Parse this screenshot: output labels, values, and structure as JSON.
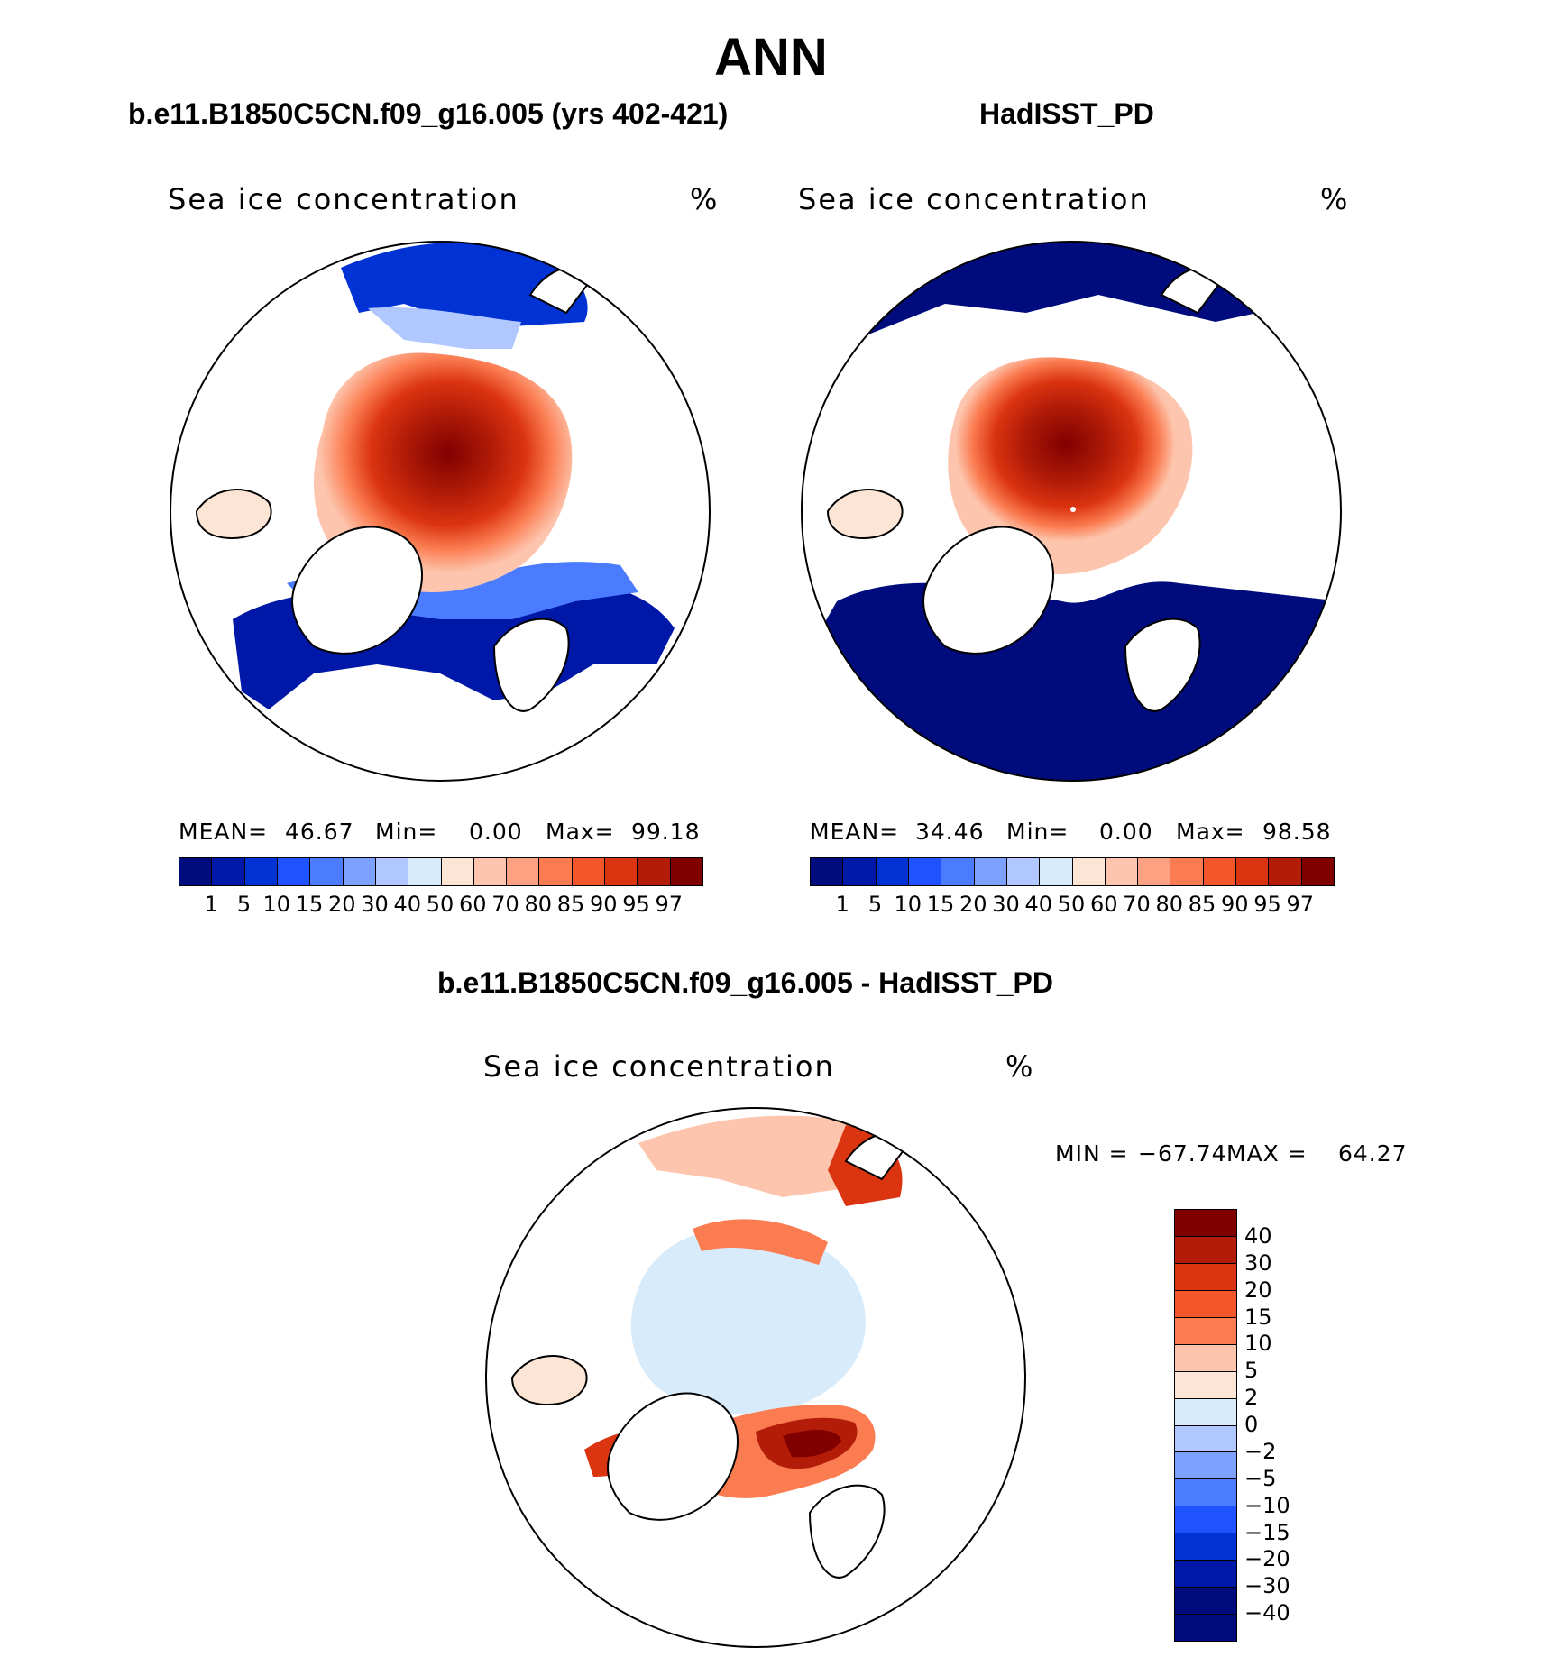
{
  "title": "ANN",
  "panels": [
    {
      "case_title": "b.e11.B1850C5CN.f09_g16.005 (yrs 402-421)",
      "variable": "Sea ice concentration",
      "units": "%",
      "stats": {
        "mean_label": "MEAN=",
        "mean": "46.67",
        "min_label": "Min=",
        "min": "0.00",
        "max_label": "Max=",
        "max": "99.18"
      }
    },
    {
      "case_title": "HadISST_PD",
      "variable": "Sea ice concentration",
      "units": "%",
      "stats": {
        "mean_label": "MEAN=",
        "mean": "34.46",
        "min_label": "Min=",
        "min": "0.00",
        "max_label": "Max=",
        "max": "98.58"
      }
    }
  ],
  "abs_colorbar": {
    "colors": [
      "#000c7d",
      "#0018a8",
      "#0132d4",
      "#1e53ff",
      "#4b7cff",
      "#7da1ff",
      "#b0c8ff",
      "#d8ebfb",
      "#fde5d6",
      "#fdc5ad",
      "#fca181",
      "#fb7c51",
      "#f3562b",
      "#db3410",
      "#b21c08",
      "#800000"
    ],
    "labels": [
      "1",
      "5",
      "10",
      "15",
      "20",
      "30",
      "40",
      "50",
      "60",
      "70",
      "80",
      "85",
      "90",
      "95",
      "97"
    ]
  },
  "diff_panel": {
    "case_title": "b.e11.B1850C5CN.f09_g16.005 - HadISST_PD",
    "variable": "Sea ice concentration",
    "units": "%",
    "minmax": {
      "min_label": "MIN =",
      "min": "−67.74",
      "max_label": "MAX =",
      "max": "64.27"
    }
  },
  "diff_colorbar": {
    "colors": [
      "#800000",
      "#b21c08",
      "#db3410",
      "#f3562b",
      "#fb7c51",
      "#fdc5ad",
      "#fde5d6",
      "#d8ebfb",
      "#b0c8ff",
      "#7da1ff",
      "#4b7cff",
      "#1e53ff",
      "#0132d4",
      "#0018a8",
      "#000c7d"
    ],
    "labels": [
      "40",
      "30",
      "20",
      "15",
      "10",
      "5",
      "2",
      "0",
      "−2",
      "−5",
      "−10",
      "−15",
      "−20",
      "−30",
      "−40"
    ]
  }
}
